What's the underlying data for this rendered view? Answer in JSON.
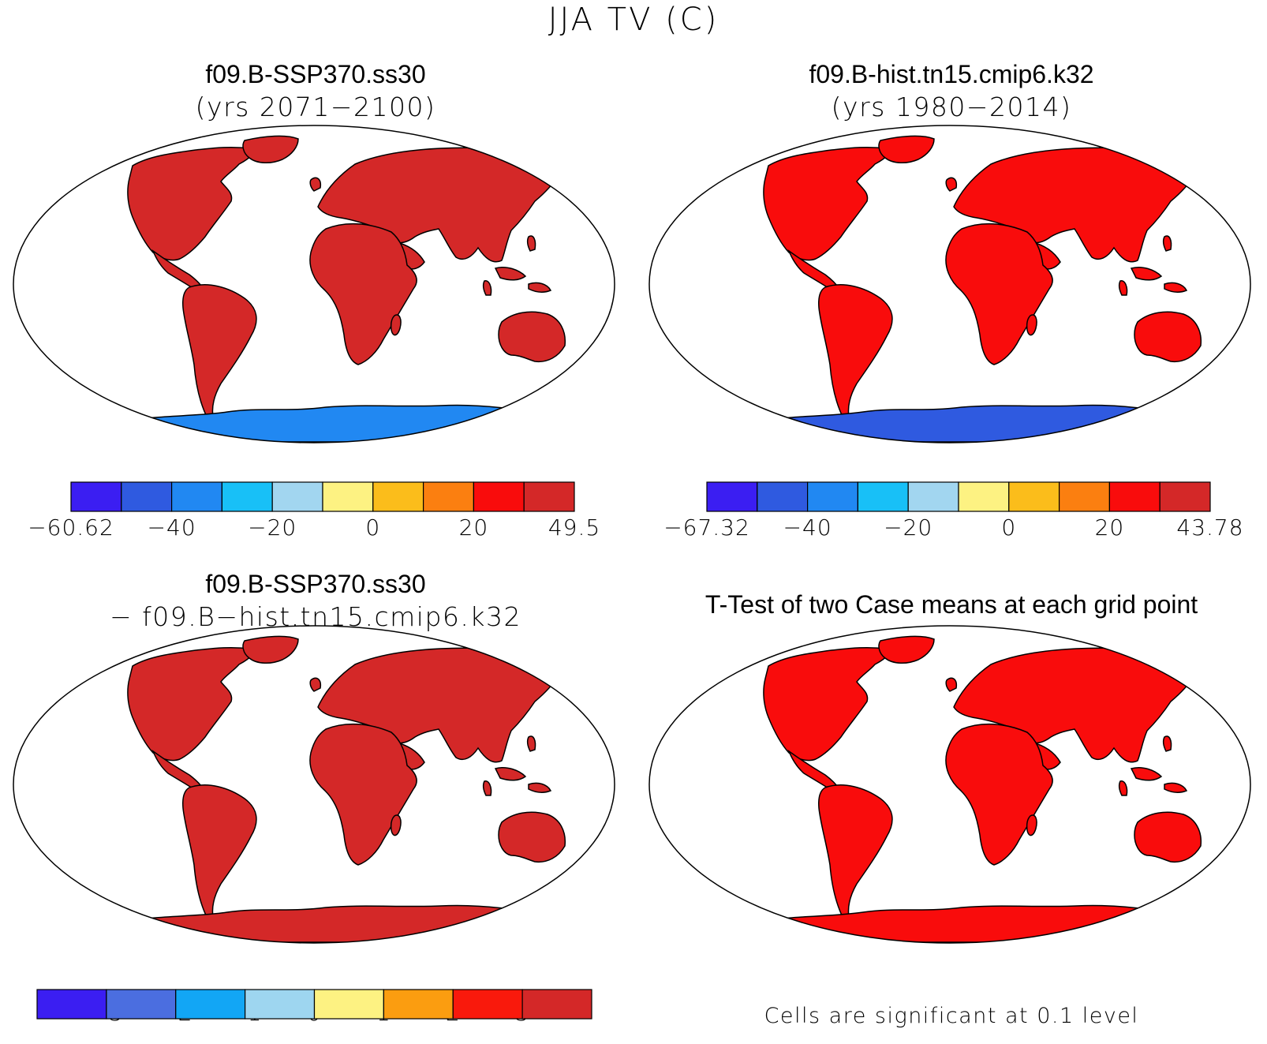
{
  "figure": {
    "title": "JJA TV (C)"
  },
  "colors": {
    "colorbar_top_left": [
      "#3b1ef2",
      "#2f5ae0",
      "#2188f2",
      "#18c0f7",
      "#a2d6f0",
      "#fdf282",
      "#fbbd1b",
      "#fb7f10",
      "#f90c0c",
      "#d42828"
    ],
    "colorbar_top_right": [
      "#3b1ef2",
      "#2f5ae0",
      "#2188f2",
      "#18c0f7",
      "#a2d6f0",
      "#fdf282",
      "#fbbd1b",
      "#fb7f10",
      "#f90c0c",
      "#d42828"
    ],
    "colorbar_diff": [
      "#3b1ef2",
      "#4b6ee0",
      "#12a6f5",
      "#9ed6f0",
      "#fdf282",
      "#fb9d10",
      "#f9190c",
      "#d42828"
    ],
    "ocean": "#ffffff",
    "coastline": "#000000"
  },
  "panels": [
    {
      "id": "case1",
      "title": "f09.B-SSP370.ss30",
      "subtitle": "(yrs 2071−2100)",
      "land_color": "#d42828",
      "antarctica_color": "#2188f2",
      "colorbar": {
        "tick_labels": [
          "−60.62",
          "−40",
          "−20",
          "0",
          "20",
          "49.5"
        ]
      }
    },
    {
      "id": "case2",
      "title": "f09.B-hist.tn15.cmip6.k32",
      "subtitle": "(yrs 1980−2014)",
      "land_color": "#f90c0c",
      "antarctica_color": "#2f5ae0",
      "colorbar": {
        "tick_labels": [
          "−67.32",
          "−40",
          "−20",
          "0",
          "20",
          "43.78"
        ]
      }
    },
    {
      "id": "difference",
      "title": "f09.B-SSP370.ss30",
      "subtitle": "− f09.B−hist.tn15.cmip6.k32",
      "land_color": "#d42828",
      "antarctica_color": "#d42828",
      "colorbar": {
        "tick_labels": [
          "−3",
          "−2",
          "−1",
          "0",
          "1",
          "2",
          "3"
        ]
      }
    },
    {
      "id": "ttest",
      "title": "T-Test of two Case means at each grid point",
      "land_color": "#f90c0c",
      "antarctica_color": "#f90c0c",
      "note": "Cells are significant at 0.1 level"
    }
  ]
}
